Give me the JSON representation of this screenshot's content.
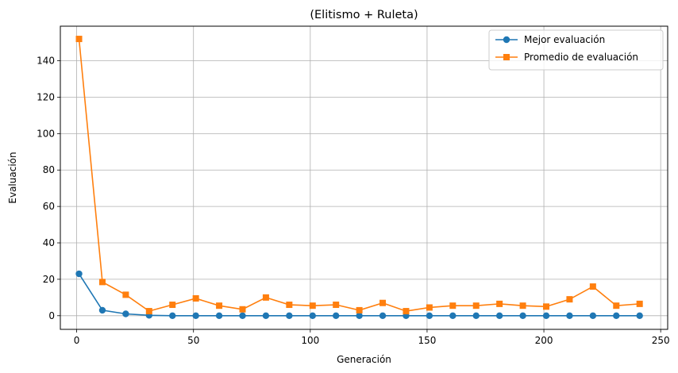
{
  "chart_data": {
    "type": "line",
    "title": "(Elitismo + Ruleta)",
    "xlabel": "Generación",
    "ylabel": "Evaluación",
    "xlim": [
      -7,
      253
    ],
    "ylim": [
      -7.5,
      159
    ],
    "xticks": [
      0,
      50,
      100,
      150,
      200,
      250
    ],
    "yticks": [
      0,
      20,
      40,
      60,
      80,
      100,
      120,
      140
    ],
    "grid": true,
    "legend_position": "top-right",
    "x": [
      1,
      11,
      21,
      31,
      41,
      51,
      61,
      71,
      81,
      91,
      101,
      111,
      121,
      131,
      141,
      151,
      161,
      171,
      181,
      191,
      201,
      211,
      221,
      231,
      241
    ],
    "series": [
      {
        "name": "Mejor evaluación",
        "color": "#1f77b4",
        "marker": "circle",
        "values": [
          23,
          3,
          1,
          0.2,
          0,
          0,
          0,
          0,
          0,
          0,
          0,
          0,
          0,
          0,
          0,
          0,
          0,
          0,
          0,
          0,
          0,
          0,
          0,
          0,
          0
        ]
      },
      {
        "name": "Promedio de evaluación",
        "color": "#ff7f0e",
        "marker": "square",
        "values": [
          152,
          18.5,
          11.5,
          2.5,
          6,
          9.5,
          5.5,
          3.5,
          10,
          6,
          5.5,
          6,
          3,
          7,
          2.5,
          4.5,
          5.5,
          5.5,
          6.5,
          5.5,
          5,
          9,
          16,
          5.5,
          6.5
        ]
      }
    ]
  }
}
